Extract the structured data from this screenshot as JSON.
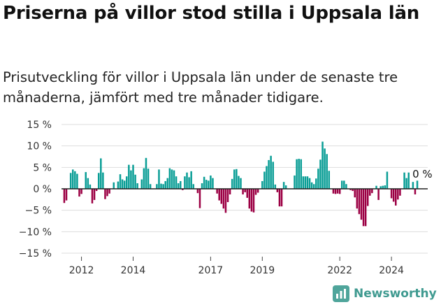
{
  "header": {
    "title": "Priserna på villor stod stilla i Uppsala län",
    "subtitle": "Prisutveckling för villor i Uppsala län under de senaste tre månaderna, jämfört med tre månader tidigare."
  },
  "brand": {
    "logo_text": "Newsworthy",
    "logo_color": "#4fa59b"
  },
  "colors": {
    "positive": "#0a9e96",
    "negative": "#9c0044",
    "zero_line": "#222222",
    "grid": "#dddddd"
  },
  "chart_data": {
    "type": "bar",
    "y_unit": "%",
    "ylim": [
      -15,
      15
    ],
    "yticks": [
      15,
      10,
      5,
      0,
      -5,
      -10,
      -15
    ],
    "ytick_labels": [
      "15 %",
      "10 %",
      "5 %",
      "0 %",
      "−5 %",
      "−10 %",
      "−15 %"
    ],
    "xticks": [
      2012,
      2014,
      2017,
      2019,
      2022,
      2024
    ],
    "x_start": "2011-05",
    "last_label": "0 %",
    "values": [
      -3.3,
      -2.7,
      0,
      3.7,
      4.5,
      4.1,
      3.5,
      -1.8,
      -1.2,
      0,
      3.9,
      2.5,
      1,
      -3.4,
      -2.6,
      -0.5,
      3.7,
      7.1,
      3.8,
      -2.4,
      -1.7,
      -1.1,
      0,
      1.5,
      0,
      1.7,
      3.4,
      2.2,
      1.9,
      2.9,
      5.6,
      4.3,
      5.6,
      3.3,
      1.3,
      0,
      2.2,
      4.8,
      7.2,
      4.7,
      1.1,
      0,
      0,
      1.1,
      4.5,
      1.2,
      1.1,
      1.8,
      2.5,
      4.8,
      4.5,
      4.3,
      2.9,
      1.3,
      1.8,
      -0.3,
      2.9,
      3.8,
      2.7,
      4.1,
      1.1,
      0,
      -1,
      -4.5,
      1.3,
      2.8,
      2.1,
      1.9,
      3.1,
      2.5,
      0,
      -1.1,
      -2.7,
      -3.5,
      -4.6,
      -5.6,
      -3.1,
      -1.3,
      2.3,
      4.5,
      4.6,
      3,
      2.5,
      -1.3,
      -0.8,
      -2.1,
      -4.6,
      -5.3,
      -5.5,
      -1.4,
      -0.9,
      0,
      1.8,
      4,
      5.3,
      6.7,
      7.7,
      6.3,
      1,
      -0.8,
      -4.1,
      -4.1,
      1.6,
      0.8,
      0,
      0,
      0,
      3.1,
      6.9,
      7,
      6.9,
      2.9,
      2.9,
      2.9,
      2.5,
      1.5,
      1.1,
      2.4,
      4.7,
      6.8,
      11,
      9.4,
      8.1,
      4.2,
      0,
      -1.1,
      -1.2,
      -1.1,
      -1.2,
      1.9,
      1.9,
      1.1,
      0,
      -0.3,
      -0.5,
      -2,
      -4.6,
      -5.9,
      -7.2,
      -8.7,
      -8.7,
      -4,
      -1.6,
      -1,
      0,
      0.7,
      -2.6,
      0.6,
      0.7,
      0.8,
      4,
      0,
      -2.2,
      -3,
      -3.9,
      -2.5,
      -1.6,
      0,
      3.8,
      2.5,
      3.8,
      0.2,
      1.6,
      -1.3,
      1.9,
      0
    ]
  }
}
